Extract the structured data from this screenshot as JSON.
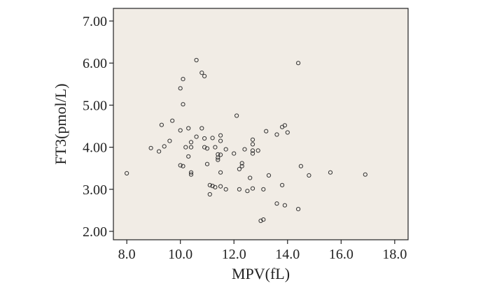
{
  "chart_data": {
    "type": "scatter",
    "xlabel": "MPV(fL)",
    "ylabel": "FT3(pmol/L)",
    "xlim": [
      7.5,
      18.5
    ],
    "ylim": [
      1.8,
      7.3
    ],
    "x_ticks": [
      "8.0",
      "10.0",
      "12.0",
      "14.0",
      "16.0",
      "18.0"
    ],
    "y_ticks": [
      "2.00",
      "3.00",
      "4.00",
      "5.00",
      "6.00",
      "7.00"
    ],
    "x_tick_values": [
      8,
      10,
      12,
      14,
      16,
      18
    ],
    "y_tick_values": [
      2,
      3,
      4,
      5,
      6,
      7
    ],
    "grid": false,
    "plot_background": "#f1ece5",
    "marker_color": "#333333",
    "points": [
      [
        8.0,
        3.38
      ],
      [
        8.9,
        3.98
      ],
      [
        9.2,
        3.9
      ],
      [
        9.3,
        4.53
      ],
      [
        9.4,
        4.02
      ],
      [
        9.6,
        4.15
      ],
      [
        9.7,
        4.63
      ],
      [
        10.0,
        4.4
      ],
      [
        10.0,
        5.4
      ],
      [
        10.0,
        3.57
      ],
      [
        10.1,
        5.62
      ],
      [
        10.1,
        5.02
      ],
      [
        10.1,
        3.55
      ],
      [
        10.2,
        4.0
      ],
      [
        10.3,
        3.78
      ],
      [
        10.3,
        4.45
      ],
      [
        10.4,
        4.12
      ],
      [
        10.4,
        4.0
      ],
      [
        10.4,
        3.4
      ],
      [
        10.4,
        3.35
      ],
      [
        10.6,
        6.07
      ],
      [
        10.6,
        4.25
      ],
      [
        10.8,
        4.45
      ],
      [
        10.8,
        5.77
      ],
      [
        10.9,
        5.69
      ],
      [
        10.9,
        4.21
      ],
      [
        10.9,
        4.0
      ],
      [
        11.0,
        3.6
      ],
      [
        11.0,
        3.97
      ],
      [
        11.1,
        3.1
      ],
      [
        11.1,
        2.88
      ],
      [
        11.2,
        3.08
      ],
      [
        11.2,
        4.22
      ],
      [
        11.3,
        3.05
      ],
      [
        11.3,
        4.0
      ],
      [
        11.4,
        3.83
      ],
      [
        11.4,
        3.75
      ],
      [
        11.4,
        3.7
      ],
      [
        11.5,
        4.28
      ],
      [
        11.5,
        4.15
      ],
      [
        11.5,
        3.82
      ],
      [
        11.5,
        3.4
      ],
      [
        11.5,
        3.07
      ],
      [
        11.7,
        3.95
      ],
      [
        11.7,
        3.0
      ],
      [
        12.0,
        3.85
      ],
      [
        12.1,
        4.75
      ],
      [
        12.2,
        3.48
      ],
      [
        12.2,
        3.0
      ],
      [
        12.3,
        3.62
      ],
      [
        12.3,
        3.55
      ],
      [
        12.4,
        3.95
      ],
      [
        12.5,
        2.96
      ],
      [
        12.6,
        3.27
      ],
      [
        12.7,
        4.18
      ],
      [
        12.7,
        4.07
      ],
      [
        12.7,
        3.92
      ],
      [
        12.7,
        3.85
      ],
      [
        12.7,
        3.02
      ],
      [
        12.9,
        3.92
      ],
      [
        13.0,
        2.25
      ],
      [
        13.1,
        2.28
      ],
      [
        13.1,
        3.0
      ],
      [
        13.2,
        4.38
      ],
      [
        13.3,
        3.33
      ],
      [
        13.6,
        4.3
      ],
      [
        13.6,
        2.66
      ],
      [
        13.8,
        4.48
      ],
      [
        13.8,
        3.1
      ],
      [
        13.9,
        4.52
      ],
      [
        13.9,
        2.62
      ],
      [
        14.0,
        4.35
      ],
      [
        14.4,
        6.0
      ],
      [
        14.4,
        2.53
      ],
      [
        14.5,
        3.55
      ],
      [
        14.8,
        3.33
      ],
      [
        15.6,
        3.4
      ],
      [
        16.9,
        3.35
      ]
    ]
  }
}
